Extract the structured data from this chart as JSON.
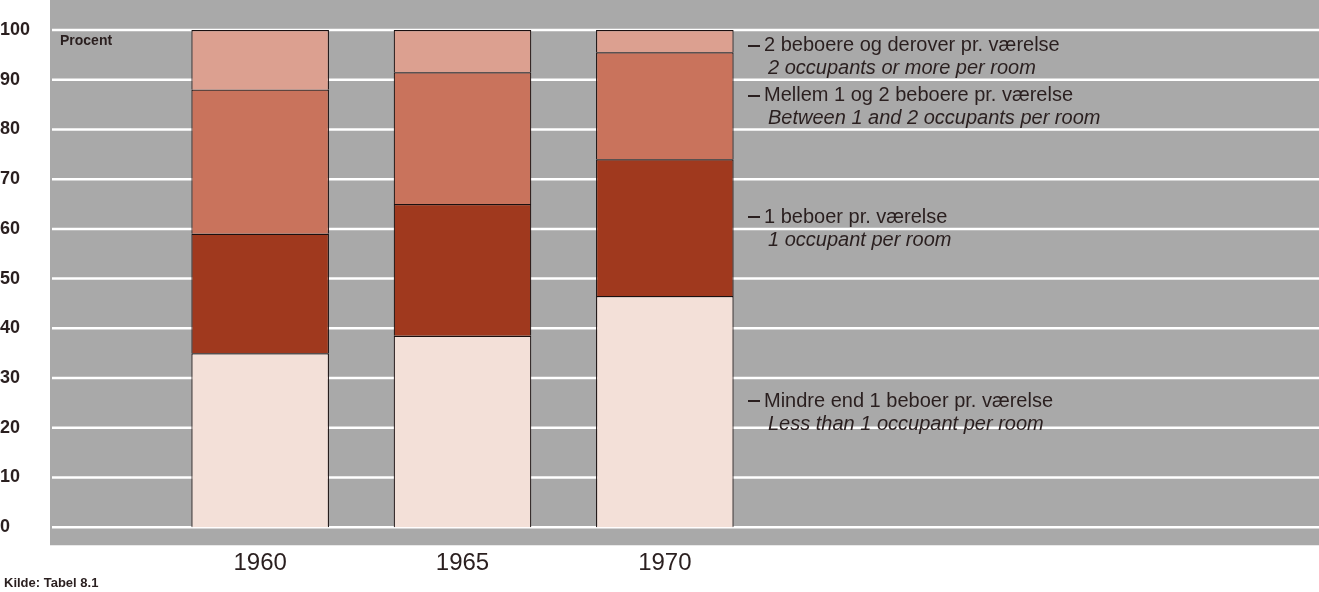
{
  "chart_data": {
    "type": "bar",
    "stacked": true,
    "ylabel": "Procent",
    "categories": [
      "1960",
      "1965",
      "1970"
    ],
    "series": [
      {
        "name": "Mindre end 1 beboer pr. værelse\nLess than 1 occupant per room",
        "color": "#f3e0d8",
        "values": [
          35,
          38.5,
          46.5
        ]
      },
      {
        "name": "1 beboer pr. værelse\n1 occupant per room",
        "color": "#a0391e",
        "values": [
          24,
          26.5,
          27.5
        ]
      },
      {
        "name": "Mellem 1 og 2 beboere pr. værelse\nBetween 1 and 2 occupants per room",
        "color": "#c9735c",
        "values": [
          29,
          26.5,
          21.5
        ]
      },
      {
        "name": "2 beboere og derover pr. værelse\n2 occupants or more per room",
        "color": "#dca090",
        "values": [
          12,
          8.5,
          4.5
        ]
      }
    ],
    "ylim": [
      0,
      100
    ],
    "yticks": [
      0,
      10,
      20,
      30,
      40,
      50,
      60,
      70,
      80,
      90,
      100
    ],
    "grid": "y",
    "annotations": [
      "Kilde: Tabel 8.1"
    ]
  }
}
